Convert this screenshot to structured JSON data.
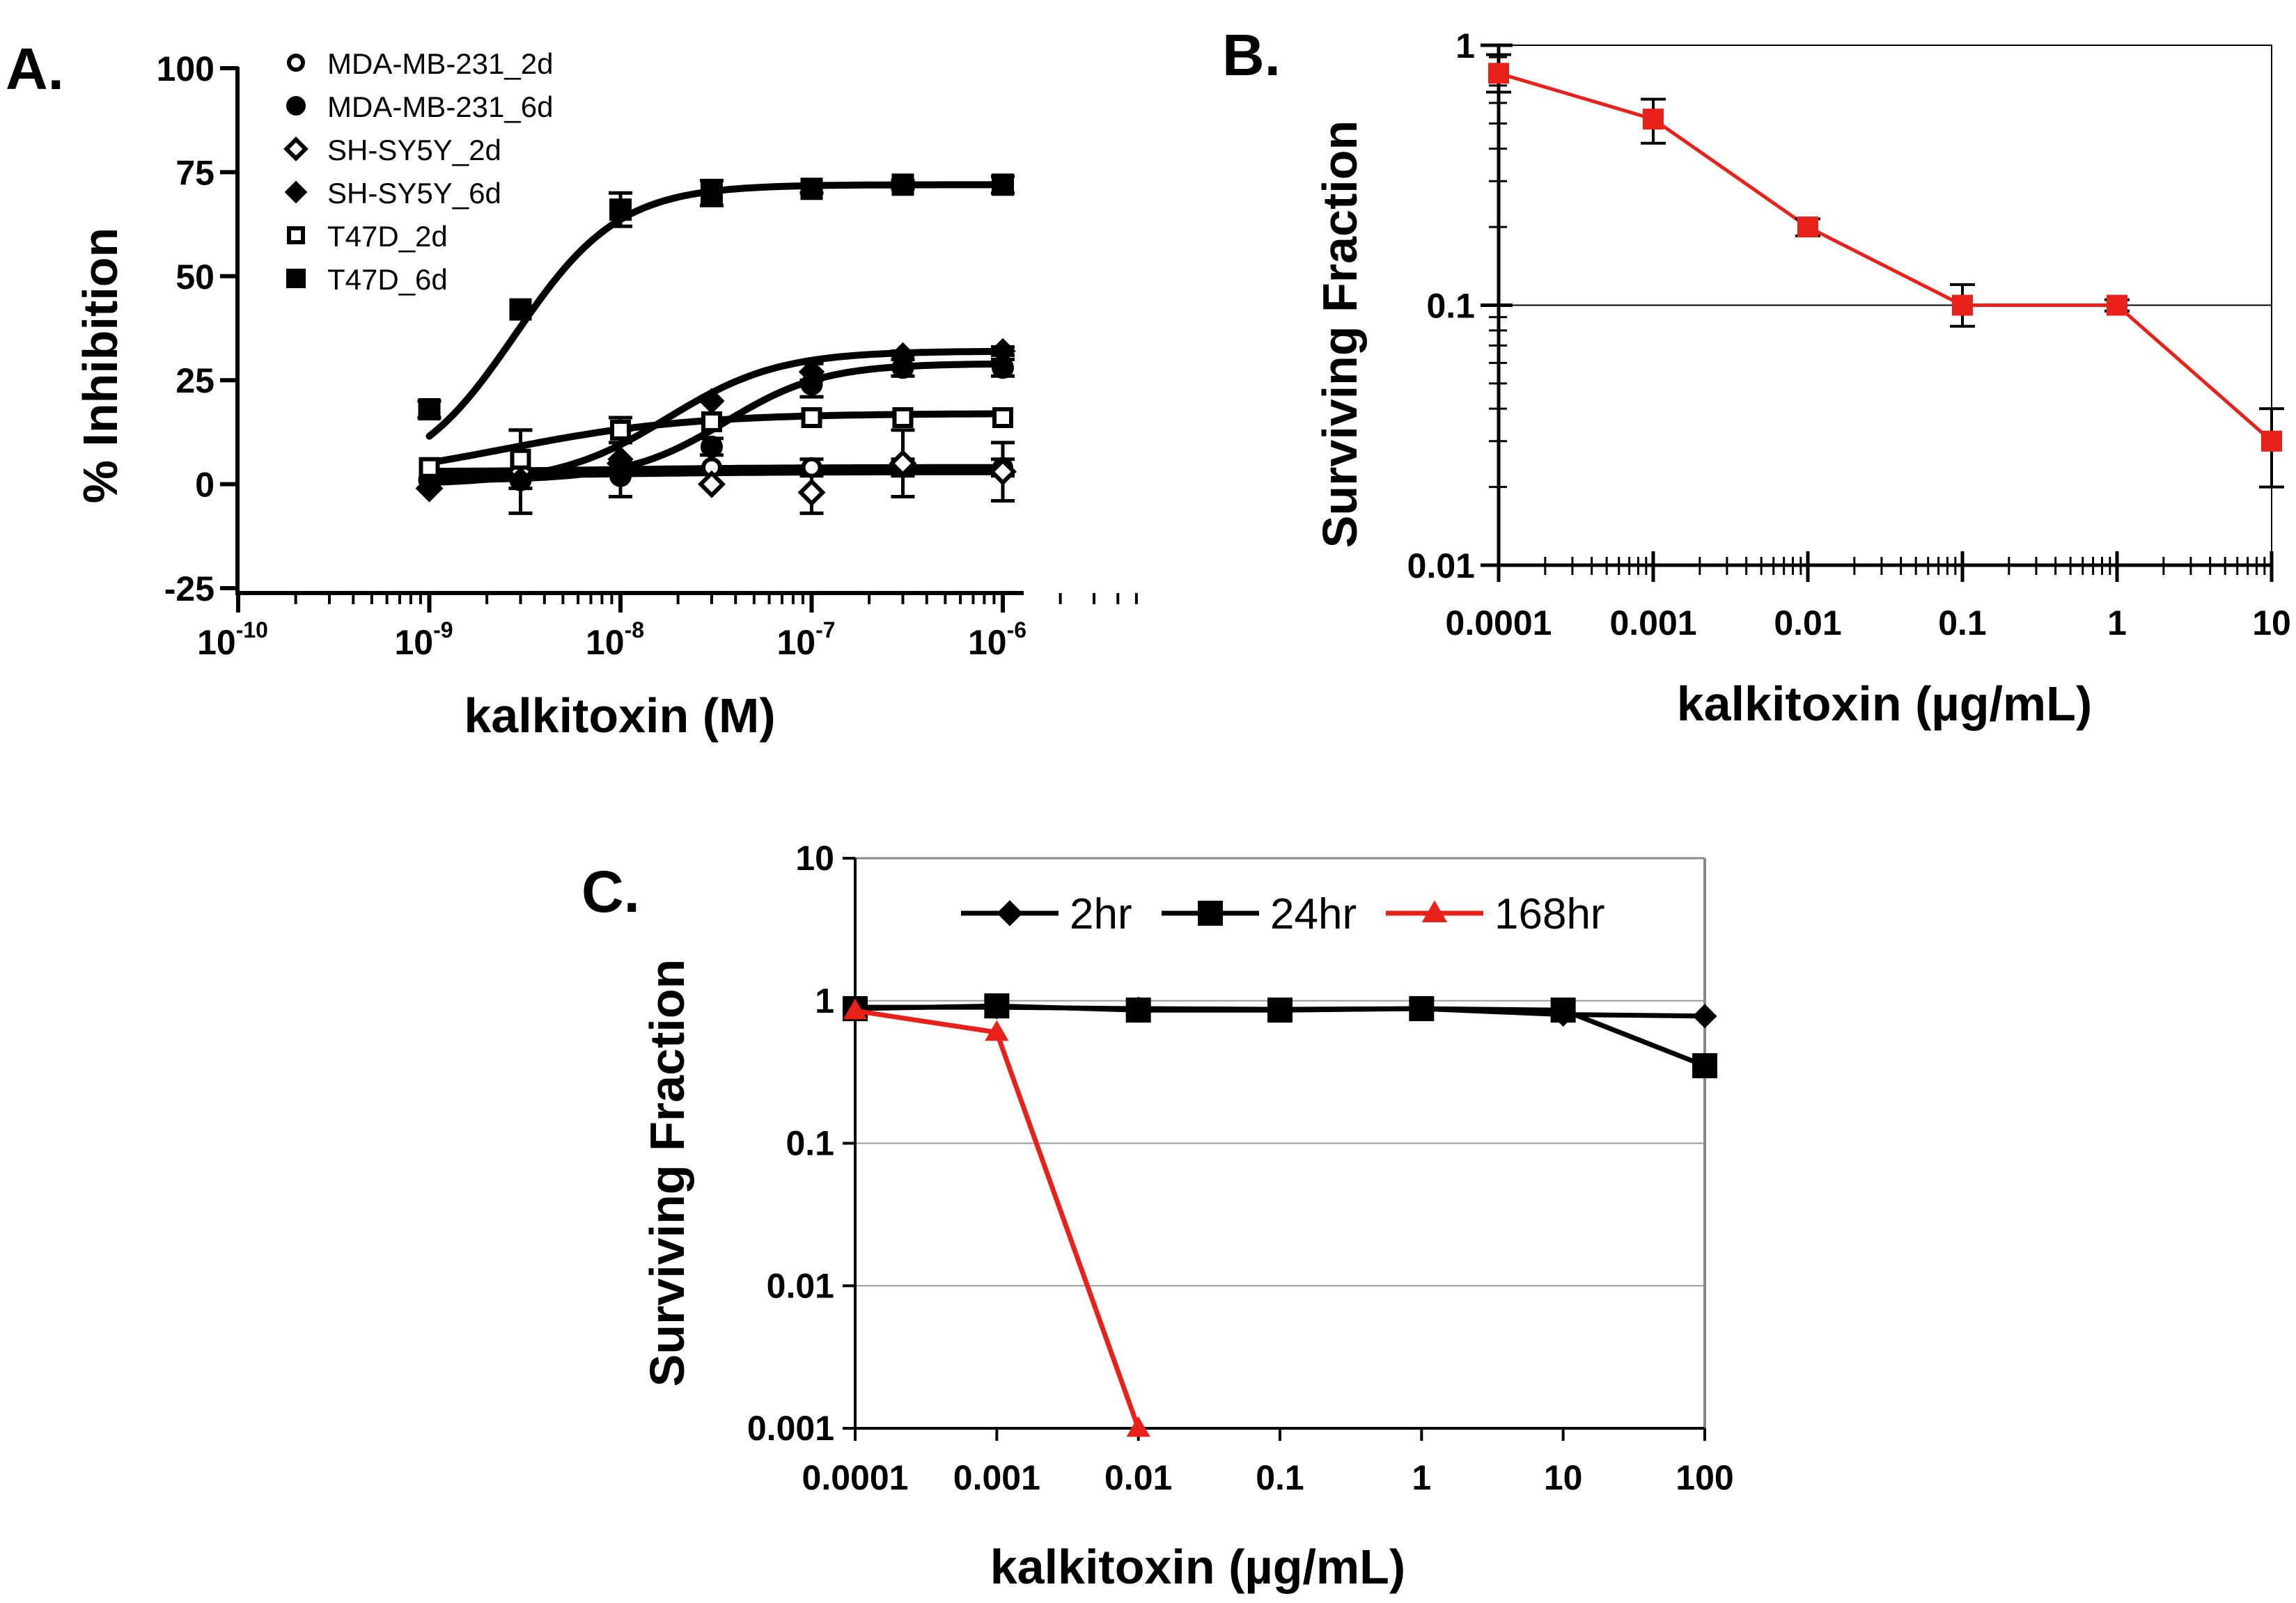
{
  "chart_data": [
    {
      "panel": "A.",
      "type": "line",
      "xscale": "log",
      "xlabel": "kalkitoxin (M)",
      "ylabel": "% Inhibition",
      "xlim": [
        -10,
        -6
      ],
      "ylim": [
        -25,
        100
      ],
      "yticks": [
        "-25",
        "0",
        "25",
        "50",
        "75",
        "100"
      ],
      "xtick_base": "10",
      "xtick_exponents": [
        "-10",
        "-9",
        "-8",
        "-7",
        "-6"
      ],
      "x": [
        1e-09,
        3e-09,
        1e-08,
        3e-08,
        1e-07,
        3e-07,
        1e-06
      ],
      "legend_position": "top-left",
      "series": [
        {
          "name": "MDA-MB-231_2d",
          "marker": "circle-open",
          "values": [
            3,
            4,
            4,
            4,
            4,
            4,
            4
          ],
          "errors": [
            0,
            0,
            0,
            0,
            2,
            2,
            2
          ],
          "curve": {
            "bottom": 3,
            "top": 4,
            "logec50": -8.0,
            "hill": 1
          }
        },
        {
          "name": "MDA-MB-231_6d",
          "marker": "circle-filled",
          "values": [
            1,
            1,
            2,
            9,
            24,
            28,
            28
          ],
          "errors": [
            0,
            0,
            0,
            2,
            3,
            2,
            2
          ],
          "curve": {
            "bottom": 1,
            "top": 29,
            "logec50": -7.45,
            "hill": 1.7
          }
        },
        {
          "name": "SH-SY5Y_2d",
          "marker": "diamond-open",
          "values": [
            -1,
            3,
            5,
            0,
            -2,
            5,
            3
          ],
          "errors": [
            0,
            10,
            8,
            0,
            5,
            8,
            7
          ],
          "curve": {
            "bottom": 2,
            "top": 3,
            "logec50": -8.0,
            "hill": 1
          }
        },
        {
          "name": "SH-SY5Y_6d",
          "marker": "diamond-filled",
          "values": [
            -1,
            1,
            6,
            20,
            27,
            31,
            32
          ],
          "errors": [
            0,
            0,
            0,
            0,
            2,
            1,
            1
          ],
          "curve": {
            "bottom": 0,
            "top": 32,
            "logec50": -7.75,
            "hill": 1.5
          }
        },
        {
          "name": "T47D_2d",
          "marker": "square-open",
          "values": [
            4,
            6,
            13,
            15,
            16,
            16,
            16
          ],
          "errors": [
            0,
            7,
            3,
            0,
            0,
            0,
            0
          ],
          "curve": {
            "bottom": 0,
            "top": 17,
            "logec50": -8.6,
            "hill": 0.9
          }
        },
        {
          "name": "T47D_6d",
          "marker": "square-filled",
          "values": [
            18,
            42,
            66,
            70,
            71,
            72,
            72
          ],
          "errors": [
            2,
            0,
            4,
            3,
            1,
            1,
            2
          ],
          "curve": {
            "bottom": 0,
            "top": 72,
            "logec50": -8.55,
            "hill": 1.6
          }
        }
      ]
    },
    {
      "panel": "B.",
      "type": "line",
      "xscale": "log",
      "yscale": "log",
      "xlabel": "kalkitoxin (µg/mL)",
      "ylabel": "Surviving Fraction",
      "xlim": [
        0.0001,
        10
      ],
      "ylim": [
        0.01,
        1
      ],
      "xticks": [
        "0.0001",
        "0.001",
        "0.01",
        "0.1",
        "1",
        "10"
      ],
      "yticks": [
        "0.01",
        "0.1",
        "1"
      ],
      "gridlines_y": [
        0.1
      ],
      "series": [
        {
          "name": "surviving fraction",
          "color": "#e8211a",
          "marker": "square-filled",
          "x": [
            0.0001,
            0.001,
            0.01,
            0.1,
            1,
            10
          ],
          "values": [
            0.78,
            0.52,
            0.2,
            0.1,
            0.1,
            0.03
          ],
          "err_low": [
            0.66,
            0.42,
            0.185,
            0.083,
            0.095,
            0.02
          ],
          "err_high": [
            0.92,
            0.62,
            0.215,
            0.12,
            0.105,
            0.04
          ]
        }
      ]
    },
    {
      "panel": "C.",
      "type": "line",
      "xscale": "log",
      "yscale": "log",
      "xlabel": "kalkitoxin (µg/mL)",
      "ylabel": "Surviving Fraction",
      "xlim": [
        0.0001,
        100
      ],
      "ylim": [
        0.001,
        10
      ],
      "xticks": [
        "0.0001",
        "0.001",
        "0.01",
        "0.1",
        "1",
        "10",
        "100"
      ],
      "yticks": [
        "0.001",
        "0.01",
        "0.1",
        "1",
        "10"
      ],
      "gridlines_y": [
        0.01,
        0.1,
        1
      ],
      "legend_position": "top-center",
      "series": [
        {
          "name": "2hr",
          "color": "#000000",
          "marker": "diamond-filled",
          "x": [
            0.0001,
            0.001,
            0.01,
            0.1,
            1,
            10,
            100
          ],
          "values": [
            0.9,
            0.9,
            0.88,
            0.87,
            0.88,
            0.8,
            0.78
          ]
        },
        {
          "name": "24hr",
          "color": "#000000",
          "marker": "square-filled",
          "x": [
            0.0001,
            0.001,
            0.01,
            0.1,
            1,
            10,
            100
          ],
          "values": [
            0.88,
            0.92,
            0.86,
            0.86,
            0.88,
            0.86,
            0.35
          ]
        },
        {
          "name": "168hr",
          "color": "#e8211a",
          "marker": "triangle-filled",
          "x": [
            0.0001,
            0.001,
            0.01
          ],
          "values": [
            0.85,
            0.6,
            0.001
          ]
        }
      ]
    }
  ]
}
